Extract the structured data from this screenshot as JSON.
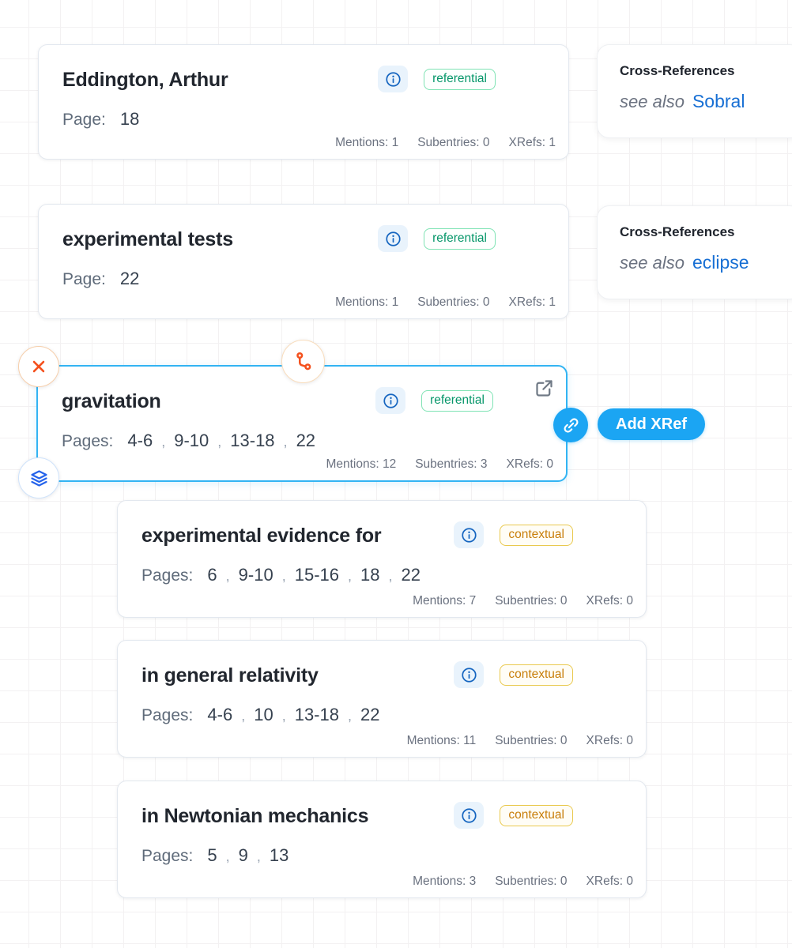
{
  "cards": [
    {
      "title": "Eddington, Arthur",
      "pages_label": "Page:",
      "pages": [
        "18"
      ],
      "badge": "referential",
      "mentions": "Mentions: 1",
      "subentries": "Subentries: 0",
      "xrefs": "XRefs: 1"
    },
    {
      "title": "experimental tests",
      "pages_label": "Page:",
      "pages": [
        "22"
      ],
      "badge": "referential",
      "mentions": "Mentions: 1",
      "subentries": "Subentries: 0",
      "xrefs": "XRefs: 1"
    },
    {
      "title": "gravitation",
      "pages_label": "Pages:",
      "pages": [
        "4-6",
        "9-10",
        "13-18",
        "22"
      ],
      "badge": "referential",
      "mentions": "Mentions: 12",
      "subentries": "Subentries: 3",
      "xrefs": "XRefs: 0"
    },
    {
      "title": "experimental evidence for",
      "pages_label": "Pages:",
      "pages": [
        "6",
        "9-10",
        "15-16",
        "18",
        "22"
      ],
      "badge": "contextual",
      "mentions": "Mentions: 7",
      "subentries": "Subentries: 0",
      "xrefs": "XRefs: 0"
    },
    {
      "title": "in general relativity",
      "pages_label": "Pages:",
      "pages": [
        "4-6",
        "10",
        "13-18",
        "22"
      ],
      "badge": "contextual",
      "mentions": "Mentions: 11",
      "subentries": "Subentries: 0",
      "xrefs": "XRefs: 0"
    },
    {
      "title": "in Newtonian mechanics",
      "pages_label": "Pages:",
      "pages": [
        "5",
        "9",
        "13"
      ],
      "badge": "contextual",
      "mentions": "Mentions: 3",
      "subentries": "Subentries: 0",
      "xrefs": "XRefs: 0"
    }
  ],
  "xref_panels": [
    {
      "title": "Cross-References",
      "prefix": "see also",
      "target": "Sobral"
    },
    {
      "title": "Cross-References",
      "prefix": "see also",
      "target": "eclipse"
    }
  ],
  "actions": {
    "add_xref": "Add XRef"
  },
  "colors": {
    "selected_border": "#32b4f3",
    "accent_blue": "#1ba5f3",
    "link_blue": "#176fd4",
    "referential_green": "#059669",
    "contextual_orange": "#c87e0a",
    "danger_orange": "#f4511e",
    "layers_blue": "#2563eb"
  }
}
